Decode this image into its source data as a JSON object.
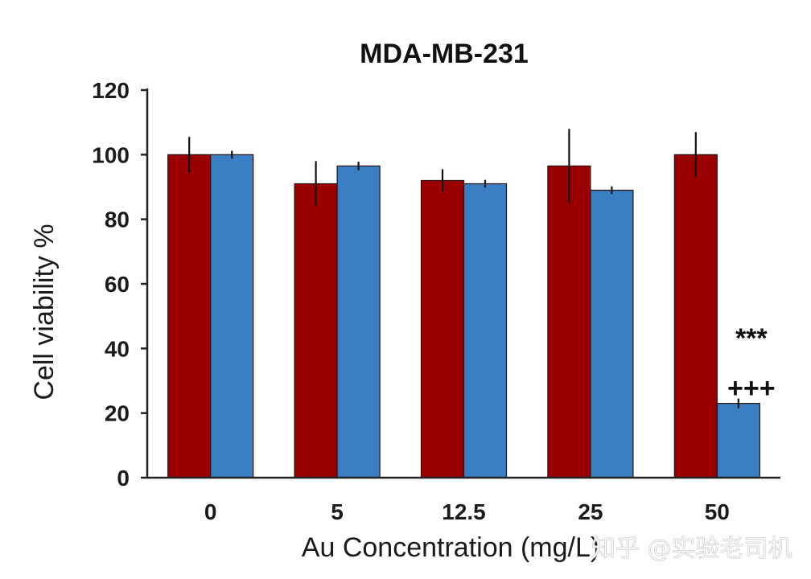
{
  "chart_data": {
    "type": "bar",
    "title": "MDA-MB-231",
    "xlabel": "Au Concentration (mg/L)",
    "ylabel": "Cell viability %",
    "categories": [
      "0",
      "5",
      "12.5",
      "25",
      "50"
    ],
    "ylim": [
      0,
      120
    ],
    "yticks": [
      0,
      20,
      40,
      60,
      80,
      100,
      120
    ],
    "grid": false,
    "series": [
      {
        "name": "series-red",
        "color": "#9b0000",
        "values": [
          100,
          91,
          92,
          96.5,
          100
        ],
        "errors": [
          5.5,
          7,
          3.5,
          11.5,
          7
        ]
      },
      {
        "name": "series-blue",
        "color": "#3a7ec4",
        "values": [
          100,
          96.5,
          91,
          89,
          23
        ],
        "errors": [
          1.2,
          1.3,
          1.2,
          1.2,
          1.5
        ]
      }
    ],
    "annotations": [
      {
        "category": "50",
        "series": "series-blue",
        "lines": [
          "***",
          "+++"
        ]
      }
    ]
  },
  "watermark": "知乎 @实验老司机"
}
